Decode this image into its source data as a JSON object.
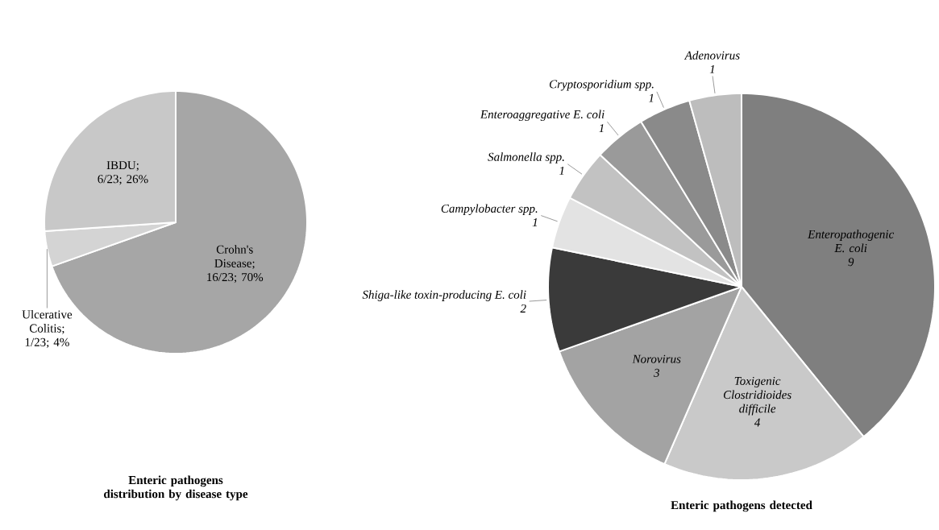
{
  "chart_data": [
    {
      "type": "pie",
      "title": "Enteric pathogens distribution by disease type",
      "categories": [
        "Crohn's Disease",
        "Ulcerative Colitis",
        "IBDU"
      ],
      "values": [
        16,
        1,
        6
      ],
      "value_labels": [
        "; 16/23; 70%",
        "; 1/23; 4%",
        "; 6/23; 26%"
      ],
      "colors": [
        "#a6a6a6",
        "#d4d4d4",
        "#c8c8c8"
      ]
    },
    {
      "type": "pie",
      "title": "Enteric pathogens detected",
      "categories": [
        "Enteropathogenic E. coli",
        "Toxigenic Clostridioides difficile",
        "Norovirus",
        "Shiga-like toxin-producing E. coli",
        "Campylobacter spp.",
        "Salmonella spp.",
        "Enteroaggregative E. coli",
        "Cryptosporidium spp.",
        "Adenovirus"
      ],
      "values": [
        9,
        4,
        3,
        2,
        1,
        1,
        1,
        1,
        1
      ],
      "colors": [
        "#7f7f7f",
        "#c9c9c9",
        "#a3a3a3",
        "#3a3a3a",
        "#e3e3e3",
        "#c2c2c2",
        "#9a9a9a",
        "#8a8a8a",
        "#bdbdbd"
      ],
      "data_labels": true
    }
  ]
}
